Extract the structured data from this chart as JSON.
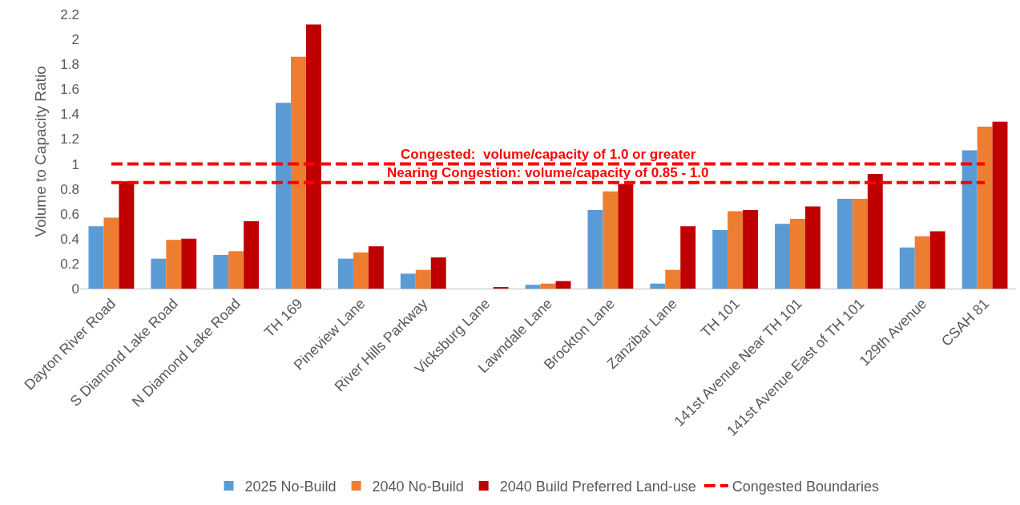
{
  "chart_data": {
    "type": "bar",
    "ylabel": "Volume to Capacity Ratio",
    "categories": [
      "Dayton River Road",
      "S Diamond Lake Road",
      "N Diamond Lake Road",
      "TH 169",
      "Pineview Lane",
      "River Hills Parkway",
      "Vicksburg Lane",
      "Lawndale Lane",
      "Brockton Lane",
      "Zanzibar Lane",
      "TH 101",
      "141st Avenue Near TH 101",
      "141st Avenue East of TH 101",
      "129th Avenue",
      "CSAH 81"
    ],
    "series": [
      {
        "name": "2025 No-Build",
        "color": "#5b9bd5",
        "values": [
          0.5,
          0.24,
          0.27,
          1.49,
          0.24,
          0.12,
          0,
          0.03,
          0.63,
          0.04,
          0.47,
          0.52,
          0.72,
          0.33,
          1.11
        ]
      },
      {
        "name": "2040 No-Build",
        "color": "#ed7d31",
        "values": [
          0.57,
          0.39,
          0.3,
          1.86,
          0.29,
          0.15,
          0,
          0.04,
          0.78,
          0.15,
          0.62,
          0.56,
          0.72,
          0.42,
          1.3
        ]
      },
      {
        "name": "2040 Build Preferred Land-use",
        "color": "#c00000",
        "values": [
          0.86,
          0.4,
          0.54,
          2.12,
          0.34,
          0.25,
          0.01,
          0.06,
          0.84,
          0.5,
          0.63,
          0.66,
          0.92,
          0.46,
          1.34
        ]
      },
      {
        "type": "line",
        "name": "Congested Boundaries",
        "color": "#ff0000",
        "line_style": "dashed",
        "values": [
          1,
          1,
          1,
          1,
          1,
          1,
          1,
          1,
          1,
          1,
          1,
          1,
          1,
          1,
          1
        ]
      },
      {
        "type": "line",
        "color": "#ff0000",
        "line_style": "dashed",
        "values": [
          0.85,
          0.85,
          0.85,
          0.85,
          0.85,
          0.85,
          0.85,
          0.85,
          0.85,
          0.85,
          0.85,
          0.85,
          0.85,
          0.85,
          0.85
        ]
      }
    ],
    "annotations": [
      {
        "text": "Congested:  volume/capacity of 1.0 or greater",
        "x": "Lawndale Lane",
        "y": 1
      },
      {
        "text": "Nearing Congestion: volume/capacity of 0.85 - 1.0",
        "x": "Lawndale Lane",
        "y": 0.85
      }
    ],
    "ylim": [
      0,
      2.2
    ],
    "yticks": [
      0,
      0.2,
      0.4,
      0.6,
      0.8,
      1,
      1.2,
      1.4,
      1.6,
      1.8,
      2,
      2.2
    ],
    "grid": false,
    "legend": "bottom",
    "marker": "none"
  }
}
